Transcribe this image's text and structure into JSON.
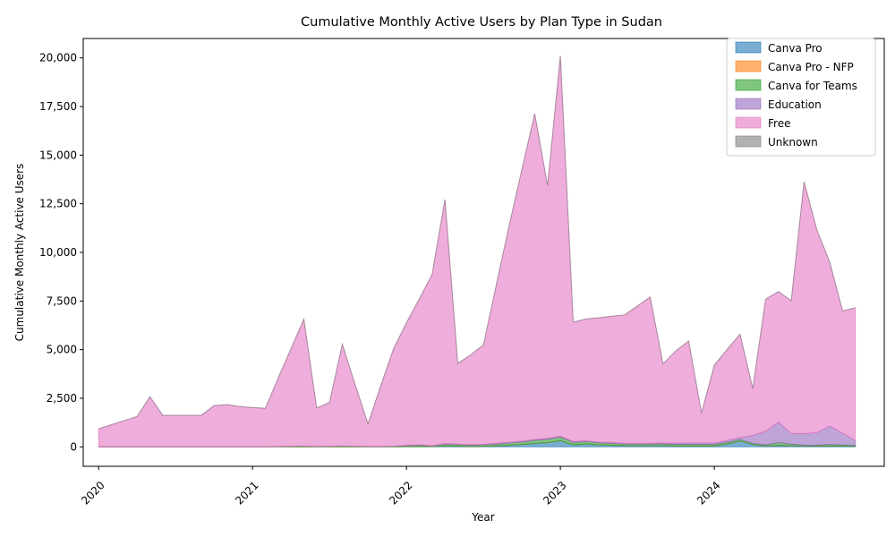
{
  "chart_data": {
    "type": "area",
    "stacked": true,
    "title": "Cumulative Monthly Active Users by Plan Type in Sudan",
    "xlabel": "Year",
    "ylabel": "Cumulative Monthly Active Users",
    "ylim": [
      -1000,
      21000
    ],
    "yticks": [
      0,
      2500,
      5000,
      7500,
      10000,
      12500,
      15000,
      17500,
      20000
    ],
    "ytick_labels": [
      "0",
      "2,500",
      "5,000",
      "7,500",
      "10,000",
      "12,500",
      "15,000",
      "17,500",
      "20,000"
    ],
    "xticks": [
      "2020-01",
      "2021-01",
      "2022-01",
      "2023-01",
      "2024-01"
    ],
    "xtick_labels": [
      "2020",
      "2021",
      "2022",
      "2023",
      "2024"
    ],
    "x_range": [
      "2019-11",
      "2025-02"
    ],
    "legend_position": "top-right",
    "grid": false,
    "x": [
      "2020-01",
      "2020-02",
      "2020-03",
      "2020-04",
      "2020-05",
      "2020-06",
      "2020-07",
      "2020-08",
      "2020-09",
      "2020-10",
      "2020-11",
      "2020-12",
      "2021-01",
      "2021-02",
      "2021-03",
      "2021-04",
      "2021-05",
      "2021-06",
      "2021-07",
      "2021-08",
      "2021-09",
      "2021-10",
      "2021-11",
      "2021-12",
      "2022-01",
      "2022-02",
      "2022-03",
      "2022-04",
      "2022-05",
      "2022-06",
      "2022-07",
      "2022-08",
      "2022-09",
      "2022-10",
      "2022-11",
      "2022-12",
      "2023-01",
      "2023-02",
      "2023-03",
      "2023-04",
      "2023-05",
      "2023-06",
      "2023-07",
      "2023-08",
      "2023-09",
      "2023-10",
      "2023-11",
      "2023-12",
      "2024-01",
      "2024-02",
      "2024-03",
      "2024-04",
      "2024-05",
      "2024-06",
      "2024-07",
      "2024-08",
      "2024-09",
      "2024-10",
      "2024-11",
      "2024-12"
    ],
    "series": [
      {
        "name": "Canva Pro",
        "color": "#1f77b4",
        "values": [
          0,
          0,
          0,
          0,
          0,
          0,
          0,
          0,
          0,
          0,
          0,
          0,
          0,
          0,
          0,
          0,
          0,
          0,
          0,
          0,
          0,
          0,
          0,
          0,
          10,
          20,
          10,
          50,
          40,
          20,
          30,
          50,
          80,
          120,
          180,
          220,
          320,
          100,
          150,
          100,
          80,
          60,
          60,
          60,
          60,
          50,
          50,
          50,
          50,
          150,
          300,
          120,
          40,
          80,
          60,
          40,
          40,
          40,
          40,
          30
        ]
      },
      {
        "name": "Canva Pro - NFP",
        "color": "#ff7f0e",
        "values": [
          0,
          0,
          0,
          0,
          0,
          0,
          0,
          0,
          0,
          0,
          0,
          0,
          0,
          0,
          0,
          0,
          0,
          0,
          0,
          0,
          0,
          0,
          0,
          0,
          0,
          0,
          0,
          0,
          0,
          0,
          0,
          0,
          0,
          0,
          0,
          0,
          0,
          0,
          0,
          0,
          0,
          0,
          0,
          0,
          0,
          0,
          0,
          0,
          0,
          0,
          0,
          0,
          0,
          0,
          0,
          0,
          0,
          0,
          0,
          0
        ]
      },
      {
        "name": "Canva for Teams",
        "color": "#2ca02c",
        "values": [
          0,
          0,
          0,
          0,
          0,
          0,
          0,
          0,
          0,
          0,
          0,
          0,
          0,
          0,
          20,
          30,
          40,
          20,
          30,
          40,
          30,
          20,
          20,
          30,
          50,
          60,
          30,
          80,
          70,
          60,
          70,
          90,
          110,
          130,
          150,
          160,
          180,
          120,
          120,
          100,
          100,
          80,
          80,
          80,
          80,
          80,
          80,
          80,
          80,
          80,
          80,
          60,
          60,
          140,
          80,
          40,
          40,
          80,
          60,
          40
        ]
      },
      {
        "name": "Education",
        "color": "#9467bd",
        "values": [
          0,
          0,
          0,
          0,
          0,
          0,
          0,
          0,
          0,
          0,
          0,
          0,
          0,
          0,
          0,
          0,
          0,
          0,
          0,
          0,
          0,
          0,
          0,
          0,
          20,
          30,
          20,
          40,
          30,
          30,
          30,
          40,
          40,
          40,
          50,
          60,
          50,
          60,
          40,
          40,
          40,
          40,
          40,
          40,
          60,
          60,
          60,
          80,
          60,
          100,
          100,
          400,
          700,
          1050,
          550,
          600,
          650,
          950,
          600,
          250
        ]
      },
      {
        "name": "Free",
        "color": "#e377c2",
        "values": [
          930,
          1140,
          1350,
          1560,
          2580,
          1620,
          1620,
          1620,
          1620,
          2120,
          2170,
          2070,
          2020,
          1980,
          3520,
          5020,
          6520,
          1980,
          2250,
          5240,
          3170,
          1160,
          3130,
          5020,
          6300,
          7500,
          8800,
          12550,
          4150,
          4620,
          5110,
          8130,
          11130,
          13970,
          16750,
          12990,
          19550,
          6130,
          6270,
          6400,
          6500,
          6600,
          7060,
          7520,
          4060,
          4750,
          5250,
          1520,
          4010,
          4680,
          5310,
          2420,
          6790,
          6720,
          6820,
          12950,
          10420,
          8420,
          6290,
          6830
        ]
      },
      {
        "name": "Unknown",
        "color": "#7f7f7f",
        "values": [
          0,
          0,
          0,
          0,
          0,
          0,
          0,
          0,
          0,
          0,
          0,
          0,
          0,
          0,
          0,
          0,
          0,
          0,
          0,
          0,
          0,
          0,
          0,
          0,
          0,
          0,
          0,
          0,
          0,
          0,
          0,
          0,
          0,
          0,
          0,
          0,
          0,
          0,
          0,
          0,
          0,
          0,
          0,
          0,
          0,
          0,
          0,
          0,
          0,
          0,
          0,
          0,
          0,
          0,
          0,
          0,
          0,
          0,
          0,
          0
        ]
      }
    ]
  }
}
